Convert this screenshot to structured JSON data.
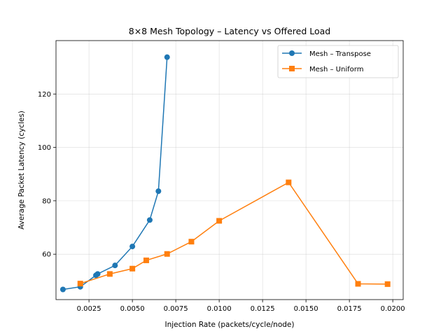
{
  "chart_data": {
    "type": "line",
    "title": "8×8 Mesh Topology – Latency vs Offered Load",
    "xlabel": "Injection Rate (packets/cycle/node)",
    "ylabel": "Average Packet Latency (cycles)",
    "xlim": [
      0.0006,
      0.0206
    ],
    "ylim": [
      43,
      140
    ],
    "x_ticks": [
      0.0025,
      0.005,
      0.0075,
      0.01,
      0.0125,
      0.015,
      0.0175,
      0.02
    ],
    "x_tick_labels": [
      "0.0025",
      "0.0050",
      "0.0075",
      "0.0100",
      "0.0125",
      "0.0150",
      "0.0175",
      "0.0200"
    ],
    "y_ticks": [
      60,
      80,
      100,
      120
    ],
    "y_tick_labels": [
      "60",
      "80",
      "100",
      "120"
    ],
    "grid": true,
    "legend_position": "top-right",
    "series": [
      {
        "name": "Mesh – Transpose",
        "color": "#1f77b4",
        "marker": "circle",
        "x": [
          0.001,
          0.002,
          0.0029,
          0.003,
          0.004,
          0.005,
          0.006,
          0.0065,
          0.007
        ],
        "y": [
          46.8,
          47.8,
          52.1,
          52.6,
          55.8,
          62.9,
          72.8,
          83.6,
          133.8
        ]
      },
      {
        "name": "Mesh – Uniform",
        "color": "#ff7f0e",
        "marker": "square",
        "x": [
          0.002,
          0.0037,
          0.005,
          0.0058,
          0.007,
          0.0084,
          0.01,
          0.014,
          0.018,
          0.0197
        ],
        "y": [
          49.0,
          52.6,
          54.6,
          57.7,
          60.1,
          64.7,
          72.5,
          86.9,
          48.9,
          48.8
        ]
      }
    ]
  }
}
